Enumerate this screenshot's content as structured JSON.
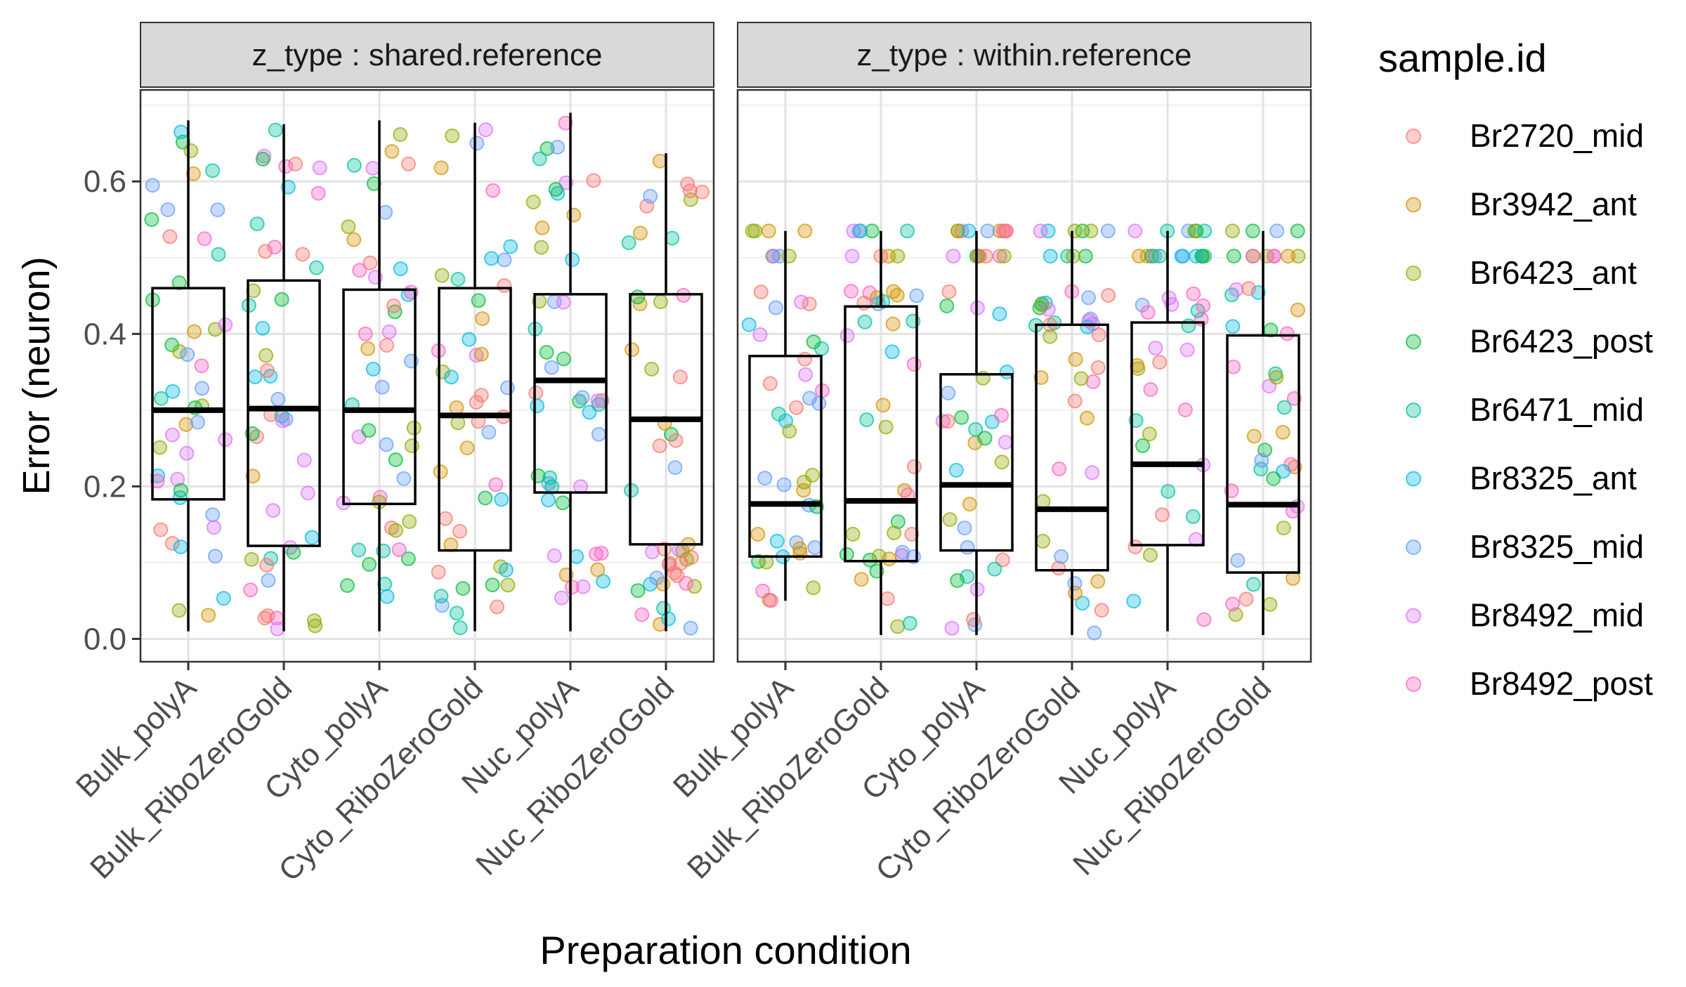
{
  "chart_data": {
    "type": "box",
    "xlabel": "Preparation condition",
    "ylabel": "Error (neuron)",
    "ylim": [
      -0.03,
      0.72
    ],
    "yticks": [
      0.0,
      0.2,
      0.4,
      0.6
    ],
    "ytick_labels": [
      "0.0",
      "0.2",
      "0.4",
      "0.6"
    ],
    "grid": true,
    "categories": [
      "Bulk_polyA",
      "Bulk_RiboZeroGold",
      "Cyto_polyA",
      "Cyto_RiboZeroGold",
      "Nuc_polyA",
      "Nuc_RiboZeroGold"
    ],
    "legend": {
      "title": "sample.id",
      "position": "right",
      "items": [
        {
          "name": "Br2720_mid",
          "color": "#F8766D"
        },
        {
          "name": "Br3942_ant",
          "color": "#D39200"
        },
        {
          "name": "Br6423_ant",
          "color": "#93AA00"
        },
        {
          "name": "Br6423_post",
          "color": "#00BA38"
        },
        {
          "name": "Br6471_mid",
          "color": "#00C19F"
        },
        {
          "name": "Br8325_ant",
          "color": "#00B9E3"
        },
        {
          "name": "Br8325_mid",
          "color": "#619CFF"
        },
        {
          "name": "Br8492_mid",
          "color": "#DB72FB"
        },
        {
          "name": "Br8492_post",
          "color": "#FF61C3"
        }
      ]
    },
    "panels": [
      {
        "strip": "z_type : shared.reference",
        "boxes": [
          {
            "category": "Bulk_polyA",
            "whisker_low": 0.01,
            "q1": 0.183,
            "median": 0.3,
            "q3": 0.46,
            "whisker_high": 0.68
          },
          {
            "category": "Bulk_RiboZeroGold",
            "whisker_low": 0.01,
            "q1": 0.122,
            "median": 0.302,
            "q3": 0.47,
            "whisker_high": 0.675
          },
          {
            "category": "Cyto_polyA",
            "whisker_low": 0.01,
            "q1": 0.177,
            "median": 0.3,
            "q3": 0.458,
            "whisker_high": 0.68
          },
          {
            "category": "Cyto_RiboZeroGold",
            "whisker_low": 0.01,
            "q1": 0.116,
            "median": 0.293,
            "q3": 0.46,
            "whisker_high": 0.677
          },
          {
            "category": "Nuc_polyA",
            "whisker_low": 0.01,
            "q1": 0.192,
            "median": 0.339,
            "q3": 0.452,
            "whisker_high": 0.69
          },
          {
            "category": "Nuc_RiboZeroGold",
            "whisker_low": 0.01,
            "q1": 0.124,
            "median": 0.288,
            "q3": 0.452,
            "whisker_high": 0.637
          }
        ]
      },
      {
        "strip": "z_type : within.reference",
        "boxes": [
          {
            "category": "Bulk_polyA",
            "whisker_low": 0.05,
            "q1": 0.108,
            "median": 0.177,
            "q3": 0.371,
            "whisker_high": 0.535
          },
          {
            "category": "Bulk_RiboZeroGold",
            "whisker_low": 0.005,
            "q1": 0.102,
            "median": 0.181,
            "q3": 0.436,
            "whisker_high": 0.535
          },
          {
            "category": "Cyto_polyA",
            "whisker_low": 0.005,
            "q1": 0.116,
            "median": 0.202,
            "q3": 0.347,
            "whisker_high": 0.535
          },
          {
            "category": "Cyto_RiboZeroGold",
            "whisker_low": 0.005,
            "q1": 0.09,
            "median": 0.17,
            "q3": 0.412,
            "whisker_high": 0.535
          },
          {
            "category": "Nuc_polyA",
            "whisker_low": 0.01,
            "q1": 0.123,
            "median": 0.229,
            "q3": 0.415,
            "whisker_high": 0.535
          },
          {
            "category": "Nuc_RiboZeroGold",
            "whisker_low": 0.005,
            "q1": 0.087,
            "median": 0.176,
            "q3": 0.398,
            "whisker_high": 0.535
          }
        ]
      }
    ],
    "points_note_hidden": "",
    "point_alpha": 0.35
  }
}
